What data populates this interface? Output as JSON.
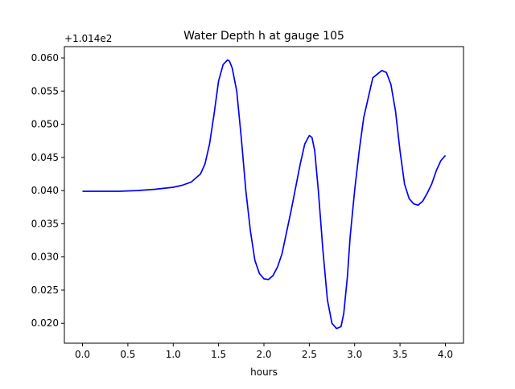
{
  "chart_data": {
    "type": "line",
    "title": "Water Depth h at gauge 105",
    "xlabel": "hours",
    "ylabel": "",
    "y_offset_label": "+1.014e2",
    "xlim": [
      -0.2,
      4.2
    ],
    "ylim": [
      0.017,
      0.0617
    ],
    "x_ticks": [
      0.0,
      0.5,
      1.0,
      1.5,
      2.0,
      2.5,
      3.0,
      3.5,
      4.0
    ],
    "x_tick_labels": [
      "0.0",
      "0.5",
      "1.0",
      "1.5",
      "2.0",
      "2.5",
      "3.0",
      "3.5",
      "4.0"
    ],
    "y_ticks": [
      0.02,
      0.025,
      0.03,
      0.035,
      0.04,
      0.045,
      0.05,
      0.055,
      0.06
    ],
    "y_tick_labels": [
      "0.020",
      "0.025",
      "0.030",
      "0.035",
      "0.040",
      "0.045",
      "0.050",
      "0.055",
      "0.060"
    ],
    "grid": false,
    "series": [
      {
        "color": "#0000ff",
        "x": [
          0.0,
          0.2,
          0.4,
          0.6,
          0.8,
          1.0,
          1.1,
          1.2,
          1.3,
          1.35,
          1.4,
          1.45,
          1.5,
          1.55,
          1.6,
          1.62,
          1.65,
          1.7,
          1.75,
          1.8,
          1.85,
          1.9,
          1.95,
          2.0,
          2.05,
          2.1,
          2.15,
          2.2,
          2.3,
          2.4,
          2.45,
          2.5,
          2.53,
          2.56,
          2.6,
          2.65,
          2.7,
          2.75,
          2.8,
          2.85,
          2.88,
          2.92,
          2.95,
          3.0,
          3.05,
          3.1,
          3.2,
          3.3,
          3.35,
          3.4,
          3.45,
          3.5,
          3.55,
          3.6,
          3.65,
          3.7,
          3.75,
          3.8,
          3.85,
          3.9,
          3.95,
          4.0
        ],
        "y": [
          0.0399,
          0.0399,
          0.0399,
          0.04,
          0.0402,
          0.0405,
          0.0408,
          0.0413,
          0.0425,
          0.044,
          0.047,
          0.0515,
          0.0565,
          0.059,
          0.0597,
          0.0595,
          0.0585,
          0.055,
          0.048,
          0.04,
          0.034,
          0.0295,
          0.0275,
          0.0267,
          0.0266,
          0.0272,
          0.0285,
          0.0305,
          0.037,
          0.044,
          0.047,
          0.0483,
          0.048,
          0.046,
          0.04,
          0.031,
          0.0235,
          0.02,
          0.0192,
          0.0195,
          0.0215,
          0.027,
          0.033,
          0.04,
          0.046,
          0.051,
          0.057,
          0.0581,
          0.0578,
          0.056,
          0.052,
          0.046,
          0.041,
          0.0388,
          0.038,
          0.0378,
          0.0384,
          0.0396,
          0.041,
          0.043,
          0.0445,
          0.0453
        ]
      }
    ]
  }
}
